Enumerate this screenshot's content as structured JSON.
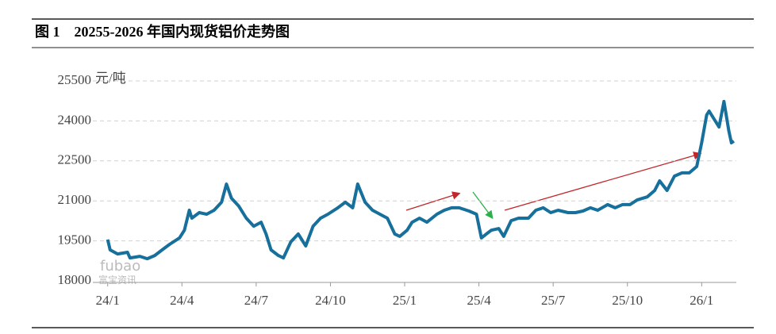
{
  "chart_data": {
    "type": "line",
    "title": "图 1　20255-2026 年国内现货铝价走势图",
    "y_unit": "元/吨",
    "watermark": [
      "fubao",
      "富宝资讯"
    ],
    "x": [
      0.0,
      0.1,
      0.4,
      0.8,
      0.9,
      1.3,
      1.6,
      1.9,
      2.2,
      2.5,
      2.9,
      3.1,
      3.3,
      3.4,
      3.7,
      4.0,
      4.3,
      4.6,
      4.8,
      5.0,
      5.3,
      5.6,
      5.9,
      6.2,
      6.4,
      6.6,
      6.9,
      7.1,
      7.4,
      7.7,
      8.0,
      8.3,
      8.6,
      8.9,
      9.3,
      9.6,
      9.9,
      10.1,
      10.4,
      10.7,
      11.0,
      11.3,
      11.6,
      11.8,
      12.1,
      12.3,
      12.6,
      12.9,
      13.3,
      13.6,
      13.9,
      14.2,
      14.6,
      14.9,
      15.1,
      15.3,
      15.5,
      15.8,
      16.0,
      16.3,
      16.6,
      17.0,
      17.3,
      17.6,
      17.9,
      18.2,
      18.6,
      18.9,
      19.2,
      19.5,
      19.8,
      20.2,
      20.5,
      20.8,
      21.1,
      21.4,
      21.8,
      22.1,
      22.3,
      22.6,
      22.9,
      23.2,
      23.5,
      23.8,
      24.0,
      24.2,
      24.3,
      24.5,
      24.7,
      24.9,
      25.1,
      25.2,
      25.3
    ],
    "series": [
      {
        "color": "#17709c",
        "values": [
          19550,
          19160,
          19010,
          19070,
          18860,
          18920,
          18830,
          18950,
          19160,
          19370,
          19610,
          19900,
          20650,
          20350,
          20560,
          20500,
          20650,
          20950,
          21630,
          21100,
          20800,
          20350,
          20050,
          20200,
          19760,
          19160,
          18950,
          18860,
          19460,
          19760,
          19310,
          20050,
          20350,
          20500,
          20740,
          20950,
          20740,
          21630,
          20950,
          20650,
          20500,
          20350,
          19760,
          19670,
          19900,
          20200,
          20350,
          20200,
          20500,
          20650,
          20740,
          20740,
          20620,
          20500,
          19610,
          19760,
          19900,
          19960,
          19670,
          20260,
          20350,
          20350,
          20650,
          20740,
          20560,
          20650,
          20560,
          20560,
          20620,
          20740,
          20650,
          20860,
          20740,
          20860,
          20860,
          21040,
          21150,
          21390,
          21750,
          21390,
          21930,
          22050,
          22050,
          22290,
          23180,
          24220,
          24370,
          24070,
          23770,
          24730,
          23620,
          23180,
          23240
        ]
      }
    ],
    "xlim": [
      -0.6,
      25.4
    ],
    "xticks": [
      {
        "value": 0,
        "label": "24/1"
      },
      {
        "value": 3,
        "label": "24/4"
      },
      {
        "value": 6,
        "label": "24/7"
      },
      {
        "value": 9,
        "label": "24/10"
      },
      {
        "value": 12,
        "label": "25/1"
      },
      {
        "value": 15,
        "label": "25/4"
      },
      {
        "value": 18,
        "label": "25/7"
      },
      {
        "value": 21,
        "label": "25/10"
      },
      {
        "value": 24,
        "label": "26/1"
      }
    ],
    "ylim": [
      18000,
      25500
    ],
    "yticks": [
      18000,
      19500,
      21000,
      22500,
      24000,
      25500
    ],
    "grid": true
  }
}
